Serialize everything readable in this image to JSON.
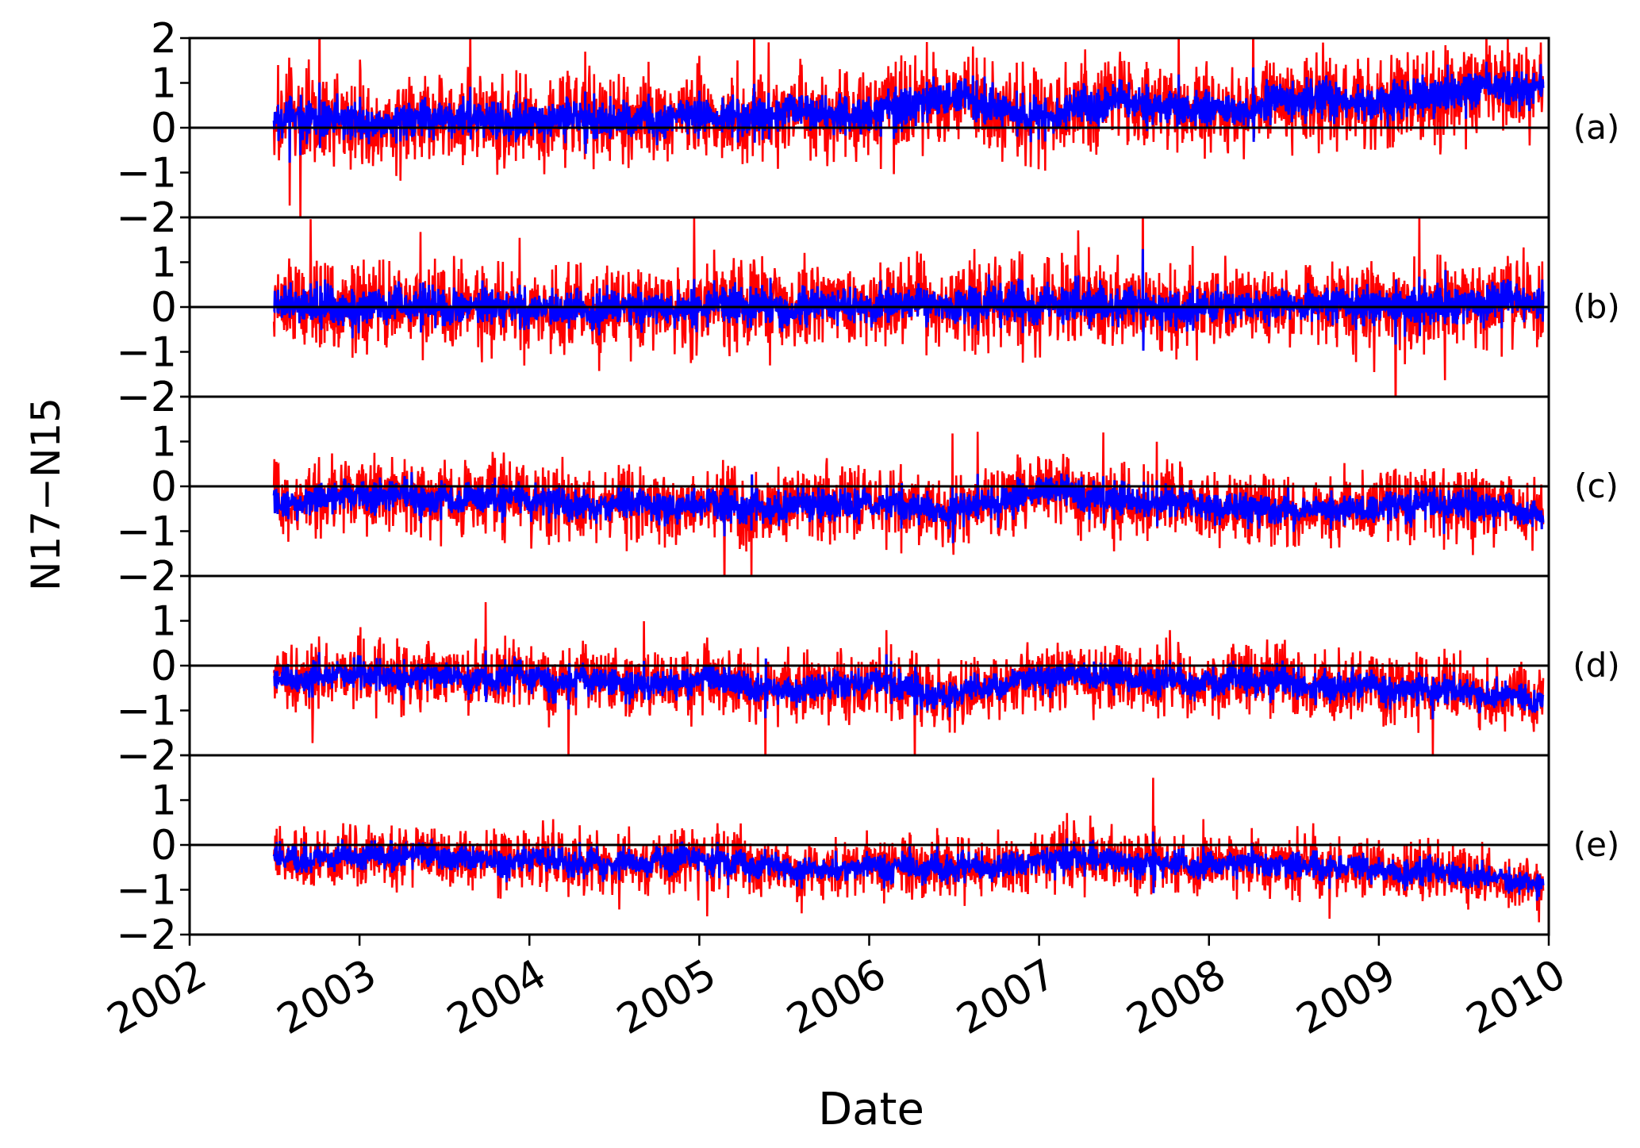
{
  "chart_data": {
    "type": "line",
    "ylabel": "N17−N15",
    "xlabel": "Date",
    "x_ticks": [
      "2002",
      "2003",
      "2004",
      "2005",
      "2006",
      "2007",
      "2008",
      "2009",
      "2010"
    ],
    "y_ticks": [
      "−2",
      "−1",
      "0",
      "1",
      "2"
    ],
    "ylim": [
      -2,
      2
    ],
    "xlim": [
      "2002-01-01",
      "2010-01-01"
    ],
    "data_start": "2002-07-01",
    "data_end": "2009-12-20",
    "colors": {
      "raw": "#ff0000",
      "smoothed": "#0000ff",
      "zero_line": "#000000"
    },
    "panels": [
      {
        "label": "(a)",
        "raw_spread": 0.7,
        "smoothed_mean": [
          [
            2002.5,
            0.2
          ],
          [
            2003.0,
            0.15
          ],
          [
            2003.5,
            0.25
          ],
          [
            2004.0,
            0.15
          ],
          [
            2004.5,
            0.2
          ],
          [
            2005.0,
            0.25
          ],
          [
            2005.5,
            0.3
          ],
          [
            2006.0,
            0.3
          ],
          [
            2006.5,
            0.75
          ],
          [
            2006.8,
            0.4
          ],
          [
            2007.0,
            0.2
          ],
          [
            2007.4,
            0.55
          ],
          [
            2007.9,
            0.45
          ],
          [
            2008.2,
            0.3
          ],
          [
            2008.5,
            0.7
          ],
          [
            2009.0,
            0.65
          ],
          [
            2009.5,
            0.8
          ],
          [
            2009.95,
            0.9
          ]
        ]
      },
      {
        "label": "(b)",
        "raw_spread": 0.65,
        "smoothed_mean": [
          [
            2002.5,
            0.0
          ],
          [
            2003.0,
            0.0
          ],
          [
            2003.5,
            0.02
          ],
          [
            2004.0,
            -0.05
          ],
          [
            2004.5,
            0.0
          ],
          [
            2005.0,
            0.0
          ],
          [
            2005.5,
            0.02
          ],
          [
            2006.0,
            0.0
          ],
          [
            2006.5,
            0.08
          ],
          [
            2007.0,
            0.0
          ],
          [
            2007.5,
            0.05
          ],
          [
            2008.0,
            0.0
          ],
          [
            2008.5,
            0.08
          ],
          [
            2009.0,
            0.05
          ],
          [
            2009.5,
            0.05
          ],
          [
            2009.95,
            0.1
          ]
        ]
      },
      {
        "label": "(c)",
        "raw_spread": 0.55,
        "smoothed_mean": [
          [
            2002.5,
            -0.35
          ],
          [
            2003.0,
            -0.2
          ],
          [
            2003.5,
            -0.2
          ],
          [
            2004.0,
            -0.3
          ],
          [
            2004.5,
            -0.4
          ],
          [
            2005.0,
            -0.4
          ],
          [
            2005.5,
            -0.5
          ],
          [
            2006.0,
            -0.4
          ],
          [
            2006.5,
            -0.55
          ],
          [
            2007.0,
            -0.15
          ],
          [
            2007.5,
            -0.3
          ],
          [
            2008.0,
            -0.45
          ],
          [
            2008.5,
            -0.5
          ],
          [
            2009.0,
            -0.45
          ],
          [
            2009.5,
            -0.4
          ],
          [
            2009.95,
            -0.7
          ]
        ]
      },
      {
        "label": "(d)",
        "raw_spread": 0.5,
        "smoothed_mean": [
          [
            2002.5,
            -0.35
          ],
          [
            2003.0,
            -0.2
          ],
          [
            2003.5,
            -0.25
          ],
          [
            2004.0,
            -0.3
          ],
          [
            2004.5,
            -0.4
          ],
          [
            2005.0,
            -0.35
          ],
          [
            2005.5,
            -0.55
          ],
          [
            2006.0,
            -0.45
          ],
          [
            2006.5,
            -0.65
          ],
          [
            2007.0,
            -0.2
          ],
          [
            2007.5,
            -0.3
          ],
          [
            2008.0,
            -0.4
          ],
          [
            2008.5,
            -0.35
          ],
          [
            2009.0,
            -0.5
          ],
          [
            2009.5,
            -0.55
          ],
          [
            2009.95,
            -0.85
          ]
        ]
      },
      {
        "label": "(e)",
        "raw_spread": 0.45,
        "smoothed_mean": [
          [
            2002.5,
            -0.3
          ],
          [
            2003.0,
            -0.25
          ],
          [
            2003.5,
            -0.3
          ],
          [
            2004.0,
            -0.35
          ],
          [
            2004.5,
            -0.45
          ],
          [
            2005.0,
            -0.35
          ],
          [
            2005.5,
            -0.5
          ],
          [
            2006.0,
            -0.5
          ],
          [
            2006.5,
            -0.55
          ],
          [
            2007.0,
            -0.3
          ],
          [
            2007.5,
            -0.35
          ],
          [
            2008.0,
            -0.45
          ],
          [
            2008.5,
            -0.45
          ],
          [
            2009.0,
            -0.55
          ],
          [
            2009.5,
            -0.65
          ],
          [
            2009.95,
            -0.95
          ]
        ]
      }
    ]
  }
}
